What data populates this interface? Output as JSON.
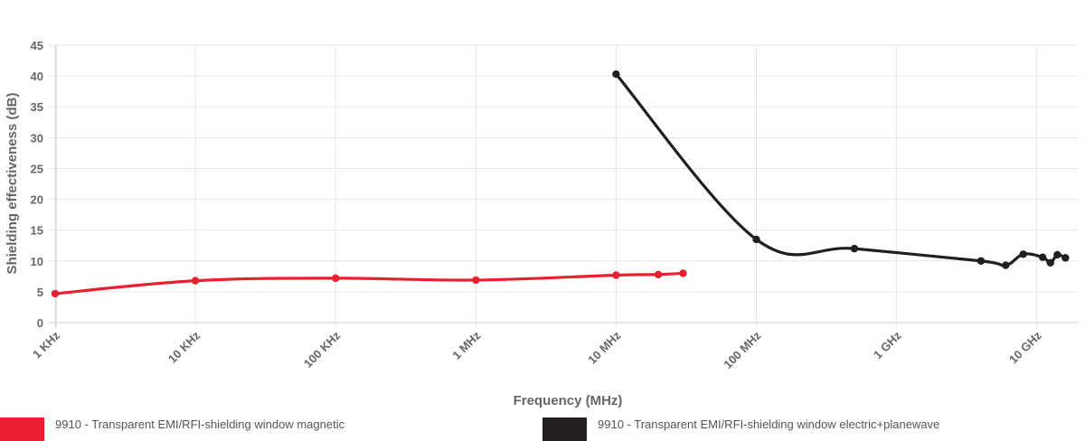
{
  "chart_data": {
    "type": "line",
    "xscale": "log",
    "title": "",
    "xlabel": "Frequency (MHz)",
    "ylabel": "Shielding effectiveness (dB)",
    "ylim": [
      0,
      45
    ],
    "yticks": [
      0,
      5,
      10,
      15,
      20,
      25,
      30,
      35,
      40,
      45
    ],
    "xlim_mhz": [
      0.001,
      20000
    ],
    "xticks": [
      {
        "value": 0.001,
        "label": "1 KHz"
      },
      {
        "value": 0.01,
        "label": "10 KHz"
      },
      {
        "value": 0.1,
        "label": "100 KHz"
      },
      {
        "value": 1,
        "label": "1 MHz"
      },
      {
        "value": 10,
        "label": "10 MHz"
      },
      {
        "value": 100,
        "label": "100 MHz"
      },
      {
        "value": 1000,
        "label": "1 GHz"
      },
      {
        "value": 10000,
        "label": "10 GHz"
      }
    ],
    "grid": true,
    "legend_position": "bottom",
    "series": [
      {
        "name": "9910 - Transparent EMI/RFI-shielding window magnetic",
        "color": "#e8202f",
        "x": [
          0.001,
          0.01,
          0.1,
          1,
          10,
          20,
          30
        ],
        "y": [
          4.7,
          6.8,
          7.2,
          6.9,
          7.7,
          7.8,
          8.0
        ]
      },
      {
        "name": "9910 - Transparent EMI/RFI-shielding window electric+planewave",
        "color": "#231f20",
        "x": [
          10,
          100,
          500,
          4000,
          6000,
          8000,
          11000,
          12500,
          14000,
          16000
        ],
        "y": [
          40.3,
          13.5,
          12.0,
          10.0,
          9.3,
          11.1,
          10.6,
          9.7,
          11.0,
          10.5
        ]
      }
    ]
  }
}
